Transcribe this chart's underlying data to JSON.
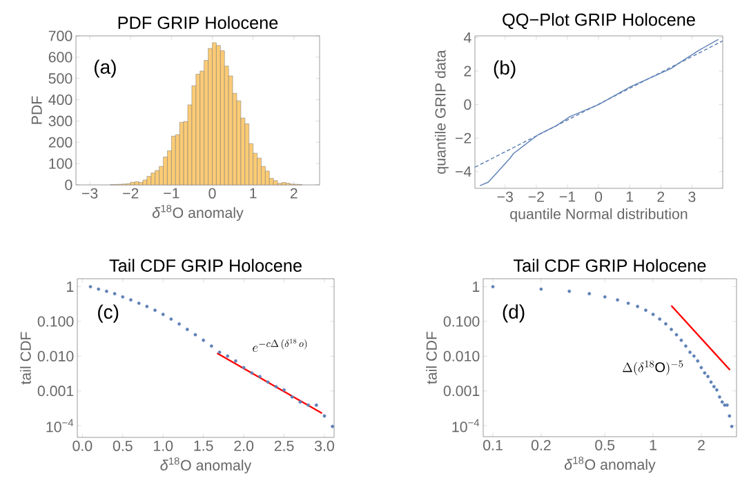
{
  "chart_data": [
    {
      "type": "histogram",
      "title": "PDF GRIP Holocene",
      "xlabel": "*δ*$^{18}$O anomaly",
      "ylabel": "PDF",
      "color": "#fccb74",
      "bins": [
        -2.5,
        -2.4,
        -2.3,
        -2.2,
        -2.1,
        -2.0,
        -1.9,
        -1.8,
        -1.7,
        -1.6,
        -1.5,
        -1.4,
        -1.3,
        -1.2,
        -1.1,
        -1.0,
        -0.9,
        -0.8,
        -0.7,
        -0.6,
        -0.5,
        -0.4,
        -0.3,
        -0.2,
        -0.1,
        0.0,
        0.1,
        0.2,
        0.3,
        0.4,
        0.5,
        0.6,
        0.7,
        0.8,
        0.9,
        1.0,
        1.1,
        1.2,
        1.3,
        1.4,
        1.5,
        1.6,
        1.7,
        1.8,
        1.9,
        2.0,
        2.1,
        2.2
      ],
      "values": [
        1,
        2,
        3,
        4,
        6,
        12,
        15,
        12,
        23,
        40,
        56,
        68,
        87,
        131,
        160,
        229,
        236,
        294,
        298,
        376,
        466,
        520,
        535,
        585,
        641,
        668,
        655,
        630,
        558,
        512,
        430,
        395,
        314,
        287,
        194,
        149,
        126,
        87,
        65,
        31,
        20,
        7,
        11,
        8,
        4,
        3,
        2
      ],
      "xlim": [
        -3.34,
        2.63
      ],
      "ylim": [
        0,
        700
      ],
      "xticks": [
        {
          "value": -3,
          "label": "−3"
        },
        {
          "value": -2,
          "label": "−2"
        },
        {
          "value": -1,
          "label": "−1"
        },
        0,
        1,
        2
      ],
      "yticks": [
        0,
        100,
        200,
        300,
        400,
        500,
        600,
        700
      ],
      "annotations": [
        "(a)"
      ]
    },
    {
      "type": "line",
      "title": "QQ−Plot GRIP Holocene",
      "xlabel": "quantile Normal distribution",
      "ylabel": "quantile GRIP data",
      "series": [
        {
          "color": "#5e81b5",
          "line_style": "solid",
          "x": [
            -3.81,
            -3.54,
            -2.84,
            -2.73,
            -2.38,
            -1.92,
            -1.37,
            -0.91,
            0,
            1.03,
            2.34,
            2.57,
            3.19,
            3.85
          ],
          "values": [
            -4.84,
            -4.63,
            -3.2,
            -2.92,
            -2.42,
            -1.78,
            -1.28,
            -0.71,
            0,
            1.07,
            2.16,
            2.46,
            3.2,
            3.89
          ]
        },
        {
          "color": "#5e81b5",
          "line_style": "dashed",
          "x": [
            -3.97,
            3.99
          ],
          "values": [
            -3.74,
            3.8
          ]
        }
      ],
      "marker": "none",
      "xlim": [
        -3.97,
        3.99
      ],
      "ylim": [
        -5,
        4.1
      ],
      "xticks": [
        {
          "value": -3,
          "label": "−3"
        },
        {
          "value": -2,
          "label": "−2"
        },
        {
          "value": -1,
          "label": "−1"
        },
        0,
        1,
        2,
        3
      ],
      "yticks": [
        {
          "value": -4,
          "label": "−4"
        },
        {
          "value": -2,
          "label": "−2"
        },
        0,
        2,
        4
      ],
      "annotations": [
        "(b)"
      ]
    },
    {
      "type": "scatter",
      "title": "Tail CDF GRIP Holocene",
      "xlabel": "*δ*$^{18}$O anomaly",
      "ylabel": "tail CDF",
      "log": "y",
      "series": [
        {
          "color": "#5e81b5",
          "marker": "circle",
          "x": [
            0.1,
            0.2,
            0.3,
            0.4,
            0.5,
            0.6,
            0.7,
            0.8,
            0.9,
            1.0,
            1.1,
            1.2,
            1.3,
            1.4,
            1.5,
            1.6,
            1.7,
            1.8,
            1.9,
            2.0,
            2.1,
            2.2,
            2.3,
            2.4,
            2.5,
            2.6,
            2.7,
            2.8,
            2.9,
            3.0,
            3.1
          ],
          "values": [
            1,
            0.853,
            0.739,
            0.63,
            0.51,
            0.417,
            0.334,
            0.271,
            0.21,
            0.16,
            0.117,
            0.085,
            0.059,
            0.0415,
            0.0288,
            0.0196,
            0.013,
            0.0101,
            0.0073,
            0.0047,
            0.0033,
            0.0026,
            0.0018,
            0.00133,
            0.00107,
            0.00067,
            0.00048,
            0.00039,
            0.00039,
            0.00019,
            9.5e-05
          ]
        },
        {
          "type": "line",
          "marker": "none",
          "color": "#ff0000",
          "x": [
            1.67,
            2.97
          ],
          "values": [
            0.0122,
            0.000228
          ]
        }
      ],
      "xlim": [
        -0.063,
        3.12
      ],
      "ylim": [
        4.6e-05,
        1.7
      ],
      "xticks": [
        {
          "value": 0,
          "label": "0.0"
        },
        0.5,
        {
          "value": 1,
          "label": "1.0"
        },
        1.5,
        {
          "value": 2,
          "label": "2.0"
        },
        2.5,
        {
          "value": 3,
          "label": "3.0"
        }
      ],
      "yticks": [
        1,
        {
          "value": 0.1,
          "label": "0.100"
        },
        {
          "value": 0.01,
          "label": "0.010"
        },
        0.001,
        {
          "value": 0.0001,
          "label": "10$^{−4}$"
        }
      ],
      "annotations": [
        "(c)",
        "e^{-c\\Delta\\,(\\delta^{18}\\,o)}"
      ]
    },
    {
      "type": "scatter",
      "title": "Tail CDF GRIP Holocene",
      "xlabel": "*δ*$^{18}$O anomaly",
      "ylabel": "tail CDF",
      "log": "xy",
      "series": [
        {
          "color": "#5e81b5",
          "marker": "circle",
          "x": [
            0.1,
            0.2,
            0.3,
            0.4,
            0.5,
            0.6,
            0.7,
            0.8,
            0.9,
            1.0,
            1.1,
            1.2,
            1.3,
            1.4,
            1.5,
            1.6,
            1.7,
            1.8,
            1.9,
            2.0,
            2.1,
            2.2,
            2.3,
            2.4,
            2.5,
            2.6,
            2.7,
            2.8,
            2.9,
            3.0,
            3.1
          ],
          "values": [
            1,
            0.853,
            0.739,
            0.63,
            0.51,
            0.417,
            0.334,
            0.271,
            0.21,
            0.16,
            0.117,
            0.085,
            0.059,
            0.0415,
            0.0288,
            0.0196,
            0.013,
            0.0101,
            0.0073,
            0.0047,
            0.0033,
            0.0026,
            0.0018,
            0.00133,
            0.00107,
            0.00067,
            0.00048,
            0.00039,
            0.00039,
            0.00019,
            9.5e-05
          ]
        },
        {
          "type": "line",
          "marker": "none",
          "color": "#ff0000",
          "x": [
            1.3,
            3.02
          ],
          "values": [
            0.285,
            0.004
          ]
        }
      ],
      "xlim": [
        0.087,
        3.32
      ],
      "ylim": [
        4.8e-05,
        1.7
      ],
      "xticks": [
        0.1,
        0.2,
        0.5,
        1,
        2
      ],
      "yticks": [
        1,
        {
          "value": 0.1,
          "label": "0.100"
        },
        {
          "value": 0.01,
          "label": "0.010"
        },
        0.001,
        {
          "value": 0.0001,
          "label": "10$^{−4}$"
        }
      ],
      "annotations": [
        "(d)",
        "\\Delta(\\delta^{18}\\mathrm{O})^{-5}"
      ]
    }
  ]
}
